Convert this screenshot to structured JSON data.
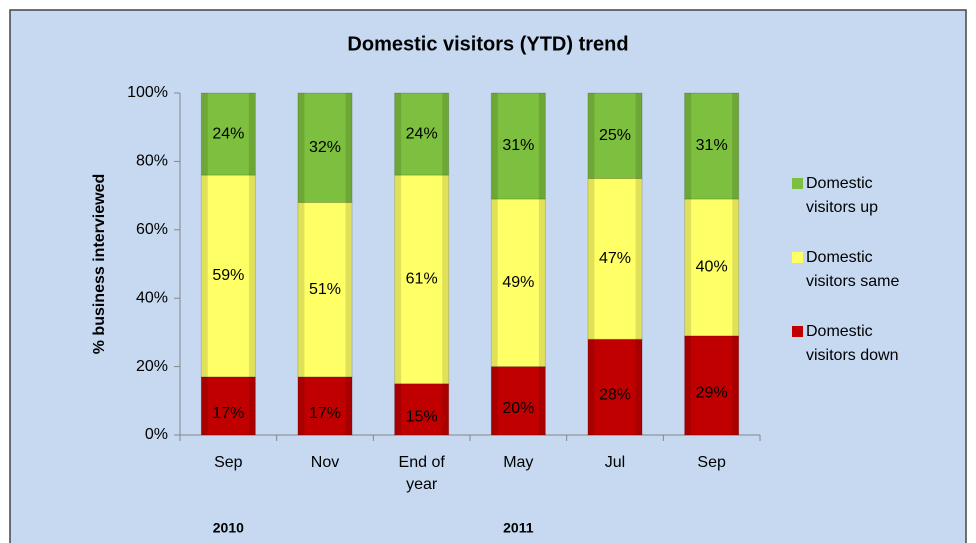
{
  "chart_data": {
    "type": "stacked_bar",
    "title": "Domestic visitors (YTD) trend",
    "y_label": "% business interviewed",
    "categories": [
      "Sep",
      "Nov",
      "End of year",
      "May",
      "Jul",
      "Sep"
    ],
    "year_groups": [
      "2010",
      "2011"
    ],
    "series": [
      {
        "name": "Domestic visitors down",
        "color": "#c00000",
        "values": [
          17,
          17,
          15,
          20,
          28,
          29
        ],
        "value_labels": [
          "17%",
          "17%",
          "15%",
          "20%",
          "28%",
          "29%"
        ]
      },
      {
        "name": "Domestic visitors same",
        "color": "#ffff66",
        "values": [
          59,
          51,
          61,
          49,
          47,
          40
        ],
        "value_labels": [
          "59%",
          "51%",
          "61%",
          "49%",
          "47%",
          "40%"
        ]
      },
      {
        "name": "Domestic visitors up",
        "color": "#7dbf3e",
        "values": [
          24,
          32,
          24,
          31,
          25,
          31
        ],
        "value_labels": [
          "24%",
          "32%",
          "24%",
          "31%",
          "25%",
          "31%"
        ]
      }
    ],
    "ylim": [
      0,
      100
    ],
    "yticks": [
      {
        "value": 0,
        "label": "0%"
      },
      {
        "value": 20,
        "label": "20%"
      },
      {
        "value": 40,
        "label": "40%"
      },
      {
        "value": 60,
        "label": "60%"
      },
      {
        "value": 80,
        "label": "80%"
      },
      {
        "value": 100,
        "label": "100%"
      }
    ]
  }
}
